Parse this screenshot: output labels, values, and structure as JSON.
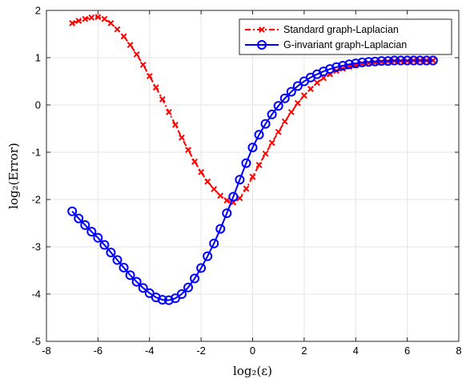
{
  "chart_data": {
    "type": "line",
    "title": "",
    "xlabel": "log₂(ε)",
    "ylabel": "log₂(Error)",
    "xlim": [
      -8,
      8
    ],
    "ylim": [
      -5,
      2
    ],
    "xticks": [
      -8,
      -6,
      -4,
      -2,
      0,
      2,
      4,
      6,
      8
    ],
    "yticks": [
      -5,
      -4,
      -3,
      -2,
      -1,
      0,
      1,
      2
    ],
    "grid": true,
    "legend_position": "top-right",
    "series": [
      {
        "name": "Standard graph-Laplacian",
        "color": "#ff0000",
        "line_style": "dash-dot",
        "marker": "x",
        "x": [
          -7.0,
          -6.75,
          -6.5,
          -6.25,
          -6.0,
          -5.75,
          -5.5,
          -5.25,
          -5.0,
          -4.75,
          -4.5,
          -4.25,
          -4.0,
          -3.75,
          -3.5,
          -3.25,
          -3.0,
          -2.75,
          -2.5,
          -2.25,
          -2.0,
          -1.75,
          -1.5,
          -1.25,
          -1.0,
          -0.75,
          -0.5,
          -0.25,
          0.0,
          0.25,
          0.5,
          0.75,
          1.0,
          1.25,
          1.5,
          1.75,
          2.0,
          2.25,
          2.5,
          2.75,
          3.0,
          3.25,
          3.5,
          3.75,
          4.0,
          4.25,
          4.5,
          4.75,
          5.0,
          5.25,
          5.5,
          5.75,
          6.0,
          6.25,
          6.5,
          6.75,
          7.0
        ],
        "y": [
          1.73,
          1.78,
          1.82,
          1.85,
          1.86,
          1.82,
          1.73,
          1.6,
          1.45,
          1.27,
          1.07,
          0.85,
          0.61,
          0.37,
          0.12,
          -0.15,
          -0.42,
          -0.69,
          -0.95,
          -1.2,
          -1.42,
          -1.62,
          -1.78,
          -1.92,
          -2.02,
          -2.06,
          -1.97,
          -1.77,
          -1.52,
          -1.27,
          -1.03,
          -0.8,
          -0.57,
          -0.35,
          -0.15,
          0.04,
          0.2,
          0.34,
          0.47,
          0.57,
          0.65,
          0.72,
          0.77,
          0.81,
          0.84,
          0.87,
          0.89,
          0.9,
          0.91,
          0.92,
          0.93,
          0.93,
          0.93,
          0.94,
          0.94,
          0.94,
          0.94
        ]
      },
      {
        "name": "G-invariant graph-Laplacian",
        "color": "#0000ff",
        "line_style": "solid",
        "marker": "o",
        "x": [
          -7.0,
          -6.75,
          -6.5,
          -6.25,
          -6.0,
          -5.75,
          -5.5,
          -5.25,
          -5.0,
          -4.75,
          -4.5,
          -4.25,
          -4.0,
          -3.75,
          -3.5,
          -3.25,
          -3.0,
          -2.75,
          -2.5,
          -2.25,
          -2.0,
          -1.75,
          -1.5,
          -1.25,
          -1.0,
          -0.75,
          -0.5,
          -0.25,
          0.0,
          0.25,
          0.5,
          0.75,
          1.0,
          1.25,
          1.5,
          1.75,
          2.0,
          2.25,
          2.5,
          2.75,
          3.0,
          3.25,
          3.5,
          3.75,
          4.0,
          4.25,
          4.5,
          4.75,
          5.0,
          5.25,
          5.5,
          5.75,
          6.0,
          6.25,
          6.5,
          6.75,
          7.0
        ],
        "y": [
          -2.25,
          -2.4,
          -2.54,
          -2.68,
          -2.81,
          -2.96,
          -3.12,
          -3.28,
          -3.44,
          -3.6,
          -3.74,
          -3.87,
          -3.98,
          -4.07,
          -4.12,
          -4.13,
          -4.09,
          -4.0,
          -3.86,
          -3.67,
          -3.45,
          -3.2,
          -2.93,
          -2.62,
          -2.29,
          -1.94,
          -1.58,
          -1.23,
          -0.9,
          -0.63,
          -0.4,
          -0.2,
          -0.02,
          0.14,
          0.28,
          0.4,
          0.5,
          0.58,
          0.65,
          0.71,
          0.76,
          0.8,
          0.83,
          0.86,
          0.88,
          0.9,
          0.91,
          0.92,
          0.93,
          0.93,
          0.94,
          0.94,
          0.94,
          0.94,
          0.94,
          0.94,
          0.94
        ]
      }
    ]
  }
}
